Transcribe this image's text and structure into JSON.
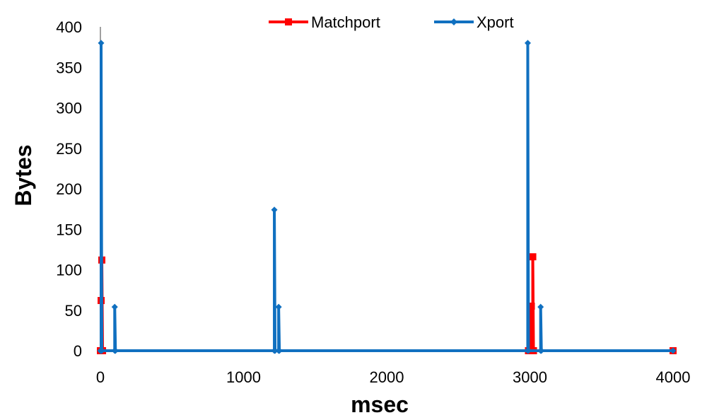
{
  "chart_data": {
    "type": "line",
    "title": "",
    "xlabel": "msec",
    "ylabel": "Bytes",
    "xlim": [
      0,
      4000
    ],
    "ylim": [
      0,
      400
    ],
    "x_ticks": [
      "0",
      "1000",
      "2000",
      "3000",
      "4000"
    ],
    "y_ticks": [
      "0",
      "50",
      "100",
      "150",
      "200",
      "250",
      "300",
      "350",
      "400"
    ],
    "grid": false,
    "legend_position": "top",
    "series": [
      {
        "name": "Matchport",
        "color": "#ff0000",
        "marker": "square",
        "x": [
          0,
          5,
          5,
          10,
          10,
          15,
          2990,
          3000,
          3000,
          3005,
          3005,
          3010,
          3010,
          3015,
          3020,
          3020,
          3025,
          4000
        ],
        "y": [
          0,
          0,
          62,
          0,
          112,
          0,
          0,
          0,
          55,
          0,
          55,
          0,
          55,
          0,
          0,
          116,
          0,
          0
        ]
      },
      {
        "name": "Xport",
        "color": "#1070c0",
        "marker": "diamond",
        "x": [
          0,
          5,
          5,
          10,
          100,
          100,
          105,
          1215,
          1215,
          1220,
          1245,
          1245,
          1250,
          2985,
          2985,
          2990,
          3075,
          3075,
          3080,
          4000
        ],
        "y": [
          0,
          0,
          380,
          0,
          0,
          54,
          0,
          0,
          174,
          0,
          0,
          54,
          0,
          0,
          380,
          0,
          0,
          54,
          0,
          0
        ]
      }
    ]
  }
}
